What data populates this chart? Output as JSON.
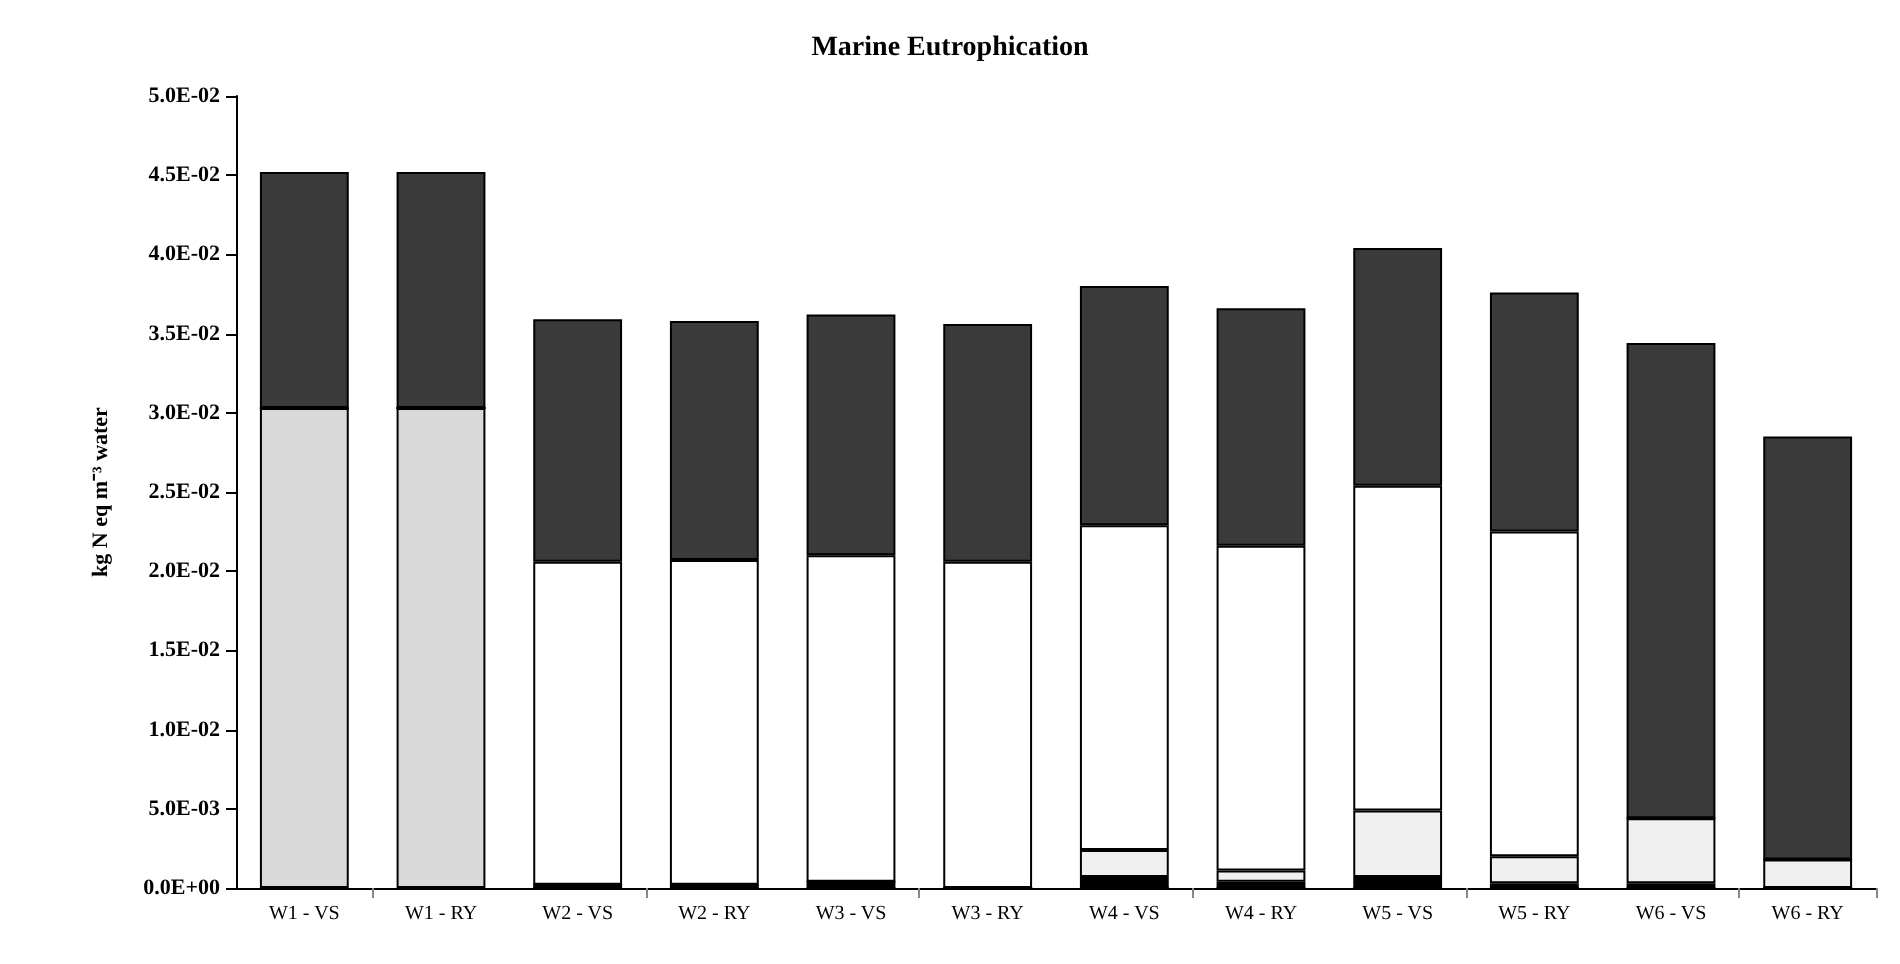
{
  "chart_data": {
    "type": "bar",
    "title": "Marine Eutrophication",
    "ylabel": "kg N eq m⁻³ water",
    "stacked": true,
    "grid": false,
    "categories": [
      "W1 - VS",
      "W1 - RY",
      "W2 - VS",
      "W2 - RY",
      "W3 - VS",
      "W3 - RY",
      "W4 - VS",
      "W4 - RY",
      "W5 - VS",
      "W5 - RY",
      "W6 - VS",
      "W6 - RY"
    ],
    "series": [
      {
        "color": "#d9d9d9",
        "values": [
          0.0303,
          0.0303,
          0,
          0,
          0,
          0,
          0,
          0,
          0,
          0,
          0,
          0
        ]
      },
      {
        "color": "#000000",
        "values": [
          0,
          0,
          0.0002,
          0.0002,
          0.0004,
          0,
          0.0007,
          0.0004,
          0.0007,
          0.0003,
          0.0003,
          0
        ]
      },
      {
        "color": "#f0f0f0",
        "values": [
          0,
          0,
          0,
          0,
          0,
          0,
          0.0017,
          0.0007,
          0.0042,
          0.0017,
          0.0041,
          0.0018
        ]
      },
      {
        "color": "#ffffff",
        "values": [
          0,
          0,
          0.0204,
          0.0205,
          0.0206,
          0.0206,
          0.0205,
          0.0205,
          0.0205,
          0.0205,
          0,
          0
        ]
      },
      {
        "color": "#3a3a3a",
        "values": [
          0.0149,
          0.0149,
          0.0153,
          0.0151,
          0.0152,
          0.015,
          0.0151,
          0.015,
          0.015,
          0.0151,
          0.03,
          0.0267
        ]
      }
    ],
    "ylim": [
      0,
      0.05
    ],
    "yticks": [
      {
        "value": 0,
        "label": "0.0E+00"
      },
      {
        "value": 0.005,
        "label": "5.0E-03"
      },
      {
        "value": 0.01,
        "label": "1.0E-02"
      },
      {
        "value": 0.015,
        "label": "1.5E-02"
      },
      {
        "value": 0.02,
        "label": "2.0E-02"
      },
      {
        "value": 0.025,
        "label": "2.5E-02"
      },
      {
        "value": 0.03,
        "label": "3.0E-02"
      },
      {
        "value": 0.035,
        "label": "3.5E-02"
      },
      {
        "value": 0.04,
        "label": "4.0E-02"
      },
      {
        "value": 0.045,
        "label": "4.5E-02"
      },
      {
        "value": 0.05,
        "label": "5.0E-02"
      }
    ]
  }
}
